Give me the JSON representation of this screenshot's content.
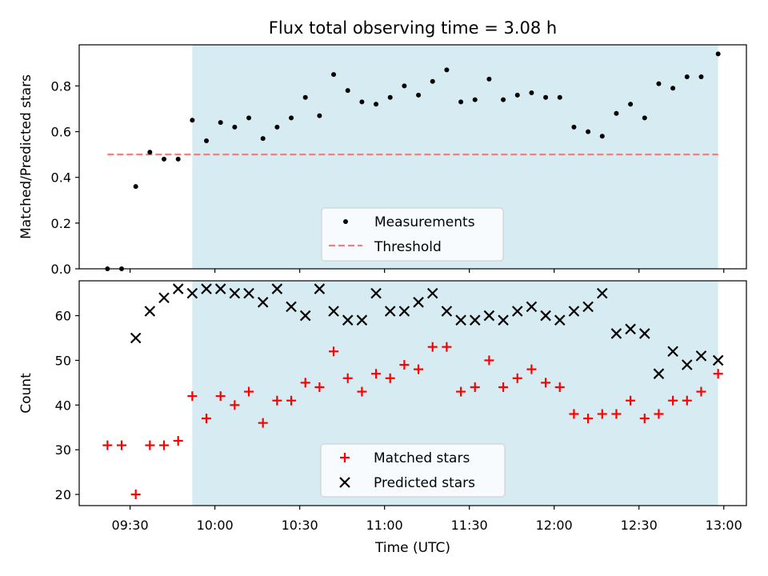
{
  "title": "Flux total observing time = 3.08 h",
  "xlabel": "Time (UTC)",
  "x_ticks": [
    "09:30",
    "10:00",
    "10:30",
    "11:00",
    "11:30",
    "12:00",
    "12:30",
    "13:00"
  ],
  "x_range": [
    "09:12",
    "13:08"
  ],
  "colors": {
    "observing_band": "#add8e6",
    "measurements": "#000000",
    "threshold": "#f08080",
    "matched": "#ff0000",
    "predicted": "#000000"
  },
  "chart_data": [
    {
      "type": "scatter",
      "ylabel": "Matched/Predicted stars",
      "ylim": [
        0,
        0.98
      ],
      "yticks": [
        0.0,
        0.2,
        0.4,
        0.6,
        0.8
      ],
      "ytick_labels": [
        "0.0",
        "0.2",
        "0.4",
        "0.6",
        "0.8"
      ],
      "legend": [
        "Measurements",
        "Threshold"
      ],
      "legend_placement": "lower center",
      "grid": false,
      "shaded_interval": [
        "09:52",
        "12:58"
      ],
      "threshold": {
        "name": "Threshold",
        "y": 0.5,
        "x_start": "09:22",
        "x_end": "12:58",
        "style": "dashed"
      },
      "series": [
        {
          "name": "Measurements",
          "marker": "dot",
          "x": [
            "09:22",
            "09:27",
            "09:32",
            "09:37",
            "09:42",
            "09:47",
            "09:52",
            "09:57",
            "10:02",
            "10:07",
            "10:12",
            "10:17",
            "10:22",
            "10:27",
            "10:32",
            "10:37",
            "10:42",
            "10:47",
            "10:52",
            "10:57",
            "11:02",
            "11:07",
            "11:12",
            "11:17",
            "11:22",
            "11:27",
            "11:32",
            "11:37",
            "11:42",
            "11:47",
            "11:52",
            "11:57",
            "12:02",
            "12:07",
            "12:12",
            "12:17",
            "12:22",
            "12:27",
            "12:32",
            "12:37",
            "12:42",
            "12:47",
            "12:52",
            "12:58"
          ],
          "y": [
            0.0,
            0.0,
            0.36,
            0.51,
            0.48,
            0.48,
            0.65,
            0.56,
            0.64,
            0.62,
            0.66,
            0.57,
            0.62,
            0.66,
            0.75,
            0.67,
            0.85,
            0.78,
            0.73,
            0.72,
            0.75,
            0.8,
            0.76,
            0.82,
            0.87,
            0.73,
            0.74,
            0.83,
            0.74,
            0.76,
            0.77,
            0.75,
            0.75,
            0.62,
            0.6,
            0.58,
            0.68,
            0.72,
            0.66,
            0.81,
            0.79,
            0.84,
            0.84,
            0.94
          ]
        }
      ]
    },
    {
      "type": "scatter",
      "ylabel": "Count",
      "ylim": [
        17.5,
        67.8
      ],
      "yticks": [
        20,
        30,
        40,
        50,
        60
      ],
      "ytick_labels": [
        "20",
        "30",
        "40",
        "50",
        "60"
      ],
      "legend": [
        "Matched stars",
        "Predicted stars"
      ],
      "legend_placement": "lower center",
      "grid": false,
      "shaded_interval": [
        "09:52",
        "12:58"
      ],
      "series": [
        {
          "name": "Matched stars",
          "marker": "plus",
          "x": [
            "09:22",
            "09:27",
            "09:32",
            "09:37",
            "09:42",
            "09:47",
            "09:52",
            "09:57",
            "10:02",
            "10:07",
            "10:12",
            "10:17",
            "10:22",
            "10:27",
            "10:32",
            "10:37",
            "10:42",
            "10:47",
            "10:52",
            "10:57",
            "11:02",
            "11:07",
            "11:12",
            "11:17",
            "11:22",
            "11:27",
            "11:32",
            "11:37",
            "11:42",
            "11:47",
            "11:52",
            "11:57",
            "12:02",
            "12:07",
            "12:12",
            "12:17",
            "12:22",
            "12:27",
            "12:32",
            "12:37",
            "12:42",
            "12:47",
            "12:52",
            "12:58"
          ],
          "y": [
            31,
            31,
            20,
            31,
            31,
            32,
            42,
            37,
            42,
            40,
            43,
            36,
            41,
            41,
            45,
            44,
            52,
            46,
            43,
            47,
            46,
            49,
            48,
            53,
            53,
            43,
            44,
            50,
            44,
            46,
            48,
            45,
            44,
            38,
            37,
            38,
            38,
            41,
            37,
            38,
            41,
            41,
            43,
            47
          ]
        },
        {
          "name": "Predicted stars",
          "marker": "x",
          "x": [
            "09:32",
            "09:37",
            "09:42",
            "09:47",
            "09:52",
            "09:57",
            "10:02",
            "10:07",
            "10:12",
            "10:17",
            "10:22",
            "10:27",
            "10:32",
            "10:37",
            "10:42",
            "10:47",
            "10:52",
            "10:57",
            "11:02",
            "11:07",
            "11:12",
            "11:17",
            "11:22",
            "11:27",
            "11:32",
            "11:37",
            "11:42",
            "11:47",
            "11:52",
            "11:57",
            "12:02",
            "12:07",
            "12:12",
            "12:17",
            "12:22",
            "12:27",
            "12:32",
            "12:37",
            "12:42",
            "12:47",
            "12:52",
            "12:58"
          ],
          "y": [
            55,
            61,
            64,
            66,
            65,
            66,
            66,
            65,
            65,
            63,
            66,
            62,
            60,
            66,
            61,
            59,
            59,
            65,
            61,
            61,
            63,
            65,
            61,
            59,
            59,
            60,
            59,
            61,
            62,
            60,
            59,
            61,
            62,
            65,
            56,
            57,
            56,
            47,
            52,
            49,
            51,
            50
          ]
        }
      ]
    }
  ]
}
